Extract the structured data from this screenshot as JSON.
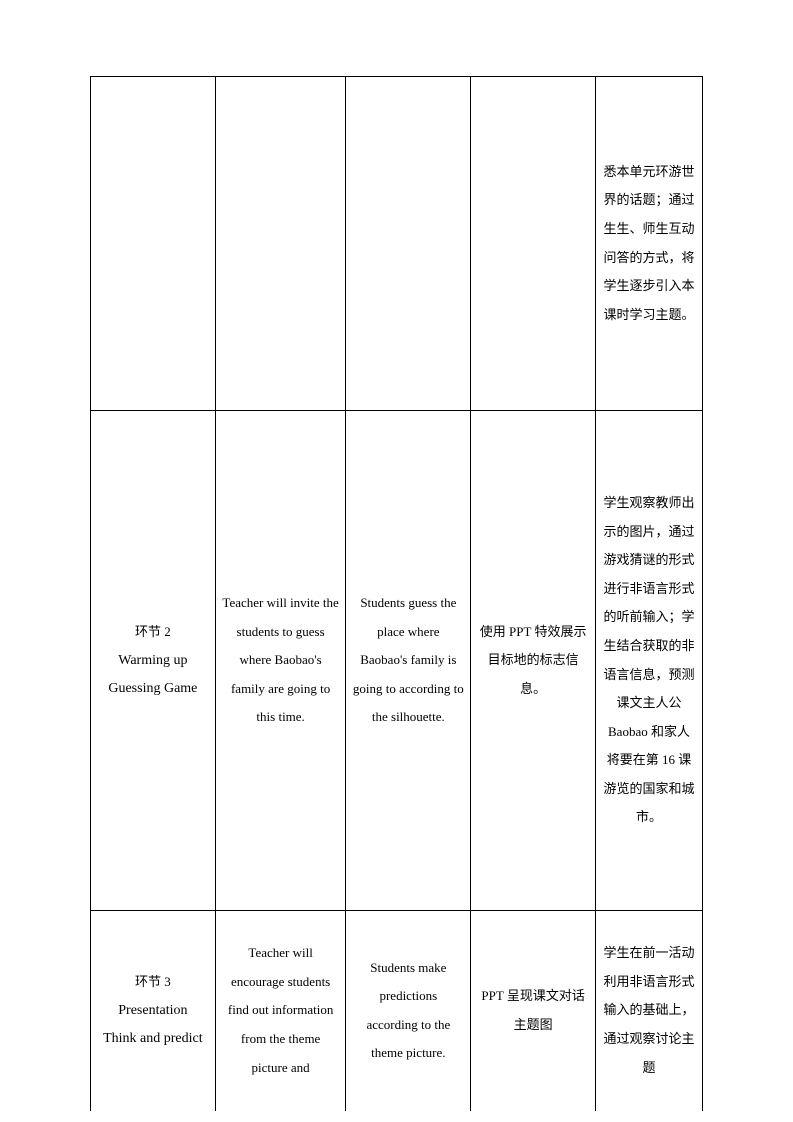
{
  "table": {
    "rows": [
      {
        "c1": "",
        "c2": "",
        "c3": "",
        "c4": "",
        "c5": "悉本单元环游世界的话题；通过生生、师生互动问答的方式，将学生逐步引入本课时学习主题。"
      },
      {
        "c1_line1": "环节 2",
        "c1_line2": "Warming up",
        "c1_line3": "",
        "c1_line4": "Guessing Game",
        "c2": "Teacher will invite the students to guess where Baobao's family are going to this time.",
        "c3": "Students guess the place where Baobao's family is going to according to the silhouette.",
        "c4": "使用 PPT 特效展示目标地的标志信息。",
        "c5": "学生观察教师出示的图片，通过游戏猜谜的形式进行非语言形式的听前输入；学生结合获取的非语言信息，预测课文主人公Baobao 和家人将要在第 16 课游览的国家和城市。"
      },
      {
        "c1_line1": "环节 3",
        "c1_line2": "Presentation",
        "c1_line3": "",
        "c1_line4": "Think and predict",
        "c2": "Teacher will encourage students find out information from the theme picture and",
        "c3": "Students make predictions according to the theme picture.",
        "c4": "PPT 呈现课文对话主题图",
        "c5": "学生在前一活动利用非语言形式输入的基础上，通过观察讨论主题"
      }
    ]
  }
}
